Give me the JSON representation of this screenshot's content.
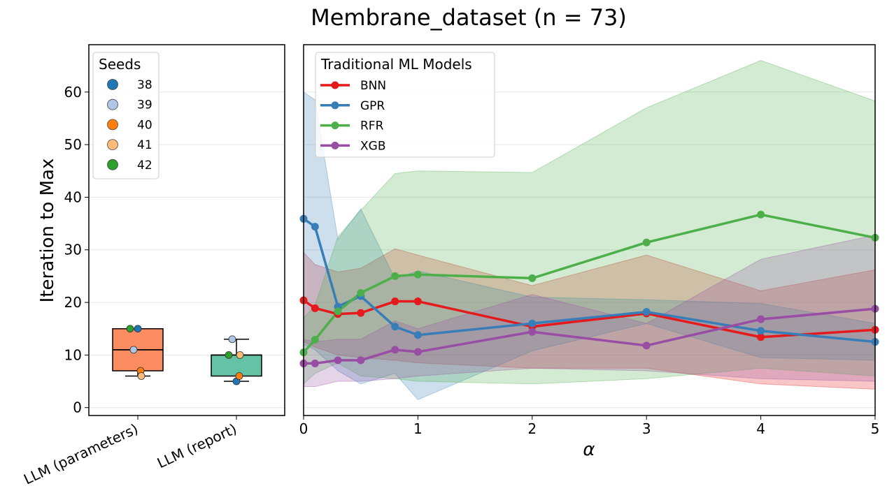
{
  "title": "Membrane_dataset (n = 73)",
  "colors": {
    "bnn": "#e41a1c",
    "gpr": "#377eb8",
    "rfr": "#4daf4a",
    "xgb": "#984ea3"
  },
  "chart_data": [
    {
      "type": "box",
      "ylabel": "Iteration to Max",
      "ylim": [
        -1.5,
        69
      ],
      "yticks": [
        0,
        10,
        20,
        30,
        40,
        50,
        60
      ],
      "grid": true,
      "legend": {
        "title": "Seeds",
        "placement": "top-left",
        "entries": [
          {
            "label": "38",
            "color": "#1f77b4"
          },
          {
            "label": "39",
            "color": "#aec7e8"
          },
          {
            "label": "40",
            "color": "#ff7f0e"
          },
          {
            "label": "41",
            "color": "#ffbb78"
          },
          {
            "label": "42",
            "color": "#2ca02c"
          }
        ]
      },
      "categories": [
        "LLM (parameters)",
        "LLM (report)"
      ],
      "boxes": [
        {
          "category": "LLM (parameters)",
          "fill": "#fc8d62",
          "whisker_low": 6,
          "q1": 7,
          "median": 11,
          "q3": 15,
          "whisker_high": 15,
          "points": [
            {
              "seed": "38",
              "value": 15
            },
            {
              "seed": "39",
              "value": 11
            },
            {
              "seed": "40",
              "value": 7
            },
            {
              "seed": "41",
              "value": 6
            },
            {
              "seed": "42",
              "value": 15
            }
          ]
        },
        {
          "category": "LLM (report)",
          "fill": "#66c2a5",
          "whisker_low": 5,
          "q1": 6,
          "median": 10,
          "q3": 10,
          "whisker_high": 13,
          "points": [
            {
              "seed": "38",
              "value": 5
            },
            {
              "seed": "39",
              "value": 13
            },
            {
              "seed": "40",
              "value": 6
            },
            {
              "seed": "41",
              "value": 10
            },
            {
              "seed": "42",
              "value": 10
            }
          ]
        }
      ]
    },
    {
      "type": "line",
      "xlabel": "α",
      "xlim": [
        0,
        5
      ],
      "ylim": [
        -1.5,
        69
      ],
      "xticks": [
        0,
        1,
        2,
        3,
        4,
        5
      ],
      "grid": true,
      "legend": {
        "title": "Traditional ML Models",
        "placement": "top-left"
      },
      "x": [
        0,
        0.1,
        0.3,
        0.5,
        0.8,
        1,
        2,
        3,
        4,
        5
      ],
      "series": [
        {
          "name": "BNN",
          "color": "#e41a1c",
          "values": [
            20.4,
            18.9,
            17.8,
            18.0,
            20.2,
            20.2,
            15.4,
            17.9,
            13.4,
            14.8
          ],
          "lower": [
            12.5,
            11.5,
            10.0,
            9.5,
            9.0,
            8.5,
            7.5,
            7.5,
            4.5,
            3.5
          ],
          "upper": [
            29.5,
            27.2,
            25.8,
            26.5,
            30.2,
            29.0,
            23.2,
            29.0,
            22.2,
            26.2
          ]
        },
        {
          "name": "GPR",
          "color": "#377eb8",
          "values": [
            35.9,
            34.4,
            19.2,
            21.2,
            15.4,
            13.8,
            16.0,
            18.2,
            14.6,
            12.5
          ],
          "lower": [
            12.0,
            11.0,
            7.0,
            4.5,
            6.5,
            1.5,
            10.8,
            16.0,
            9.5,
            9.0
          ],
          "upper": [
            60.0,
            58.5,
            32.0,
            37.8,
            24.5,
            26.0,
            21.0,
            20.5,
            19.8,
            16.0
          ]
        },
        {
          "name": "RFR",
          "color": "#4daf4a",
          "values": [
            10.5,
            12.9,
            18.3,
            21.8,
            25.0,
            25.3,
            24.6,
            31.4,
            36.7,
            32.3
          ],
          "lower": [
            4.5,
            6.5,
            8.5,
            6.0,
            5.5,
            5.0,
            4.5,
            5.5,
            7.5,
            6.0
          ],
          "upper": [
            17.0,
            19.5,
            32.5,
            37.5,
            44.5,
            45.0,
            44.7,
            57.0,
            66.0,
            58.3
          ]
        },
        {
          "name": "XGB",
          "color": "#984ea3",
          "values": [
            8.4,
            8.4,
            9.0,
            9.0,
            11.0,
            10.6,
            14.4,
            11.8,
            16.8,
            18.8
          ],
          "lower": [
            4.0,
            4.0,
            5.0,
            5.0,
            5.5,
            6.0,
            7.5,
            7.0,
            5.5,
            5.0
          ],
          "upper": [
            13.0,
            12.5,
            13.0,
            13.0,
            16.5,
            15.0,
            21.5,
            16.0,
            28.2,
            32.8
          ]
        }
      ]
    }
  ]
}
